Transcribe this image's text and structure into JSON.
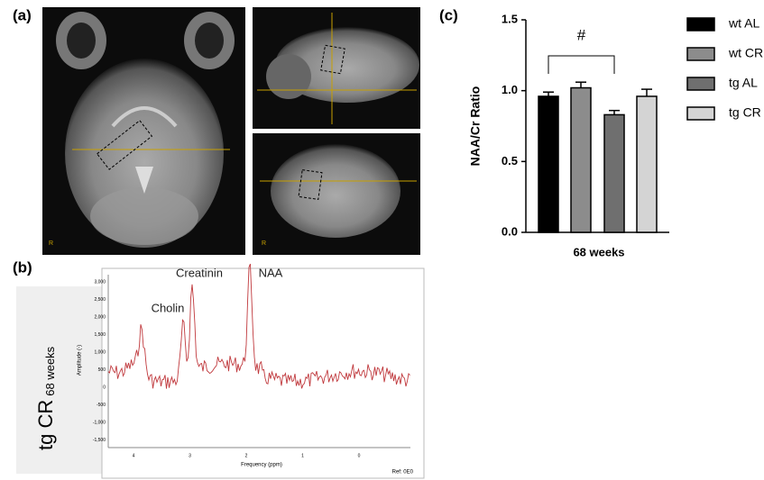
{
  "panel_a": {
    "label": "(a)",
    "orientation": "R"
  },
  "panel_b": {
    "label": "(b)",
    "group": "tg CR",
    "age": "68 weeks",
    "peaks": [
      "Cholin",
      "Creatinin",
      "NAA"
    ],
    "y_axis": "Amplitude (-)",
    "x_axis": "Frequency (ppm)",
    "ref": "Ref: 0E0",
    "yticks": [
      "3,000",
      "2,500",
      "2,000",
      "1,500",
      "1,000",
      "500",
      "0",
      "-500",
      "-1,000",
      "-1,500"
    ],
    "xticks": [
      "4",
      "3",
      "2",
      "1",
      "0"
    ]
  },
  "chart_data": {
    "type": "bar",
    "panel_label": "(c)",
    "ylabel": "NAA/Cr Ratio",
    "categories": [
      "68 weeks"
    ],
    "annotation": "#",
    "series": [
      {
        "name": "wt AL",
        "color": "#000000",
        "values": [
          0.96
        ],
        "errors": [
          0.03
        ]
      },
      {
        "name": "wt CR",
        "color": "#8c8c8c",
        "values": [
          1.02
        ],
        "errors": [
          0.04
        ]
      },
      {
        "name": "tg AL",
        "color": "#6f6f6f",
        "values": [
          0.83
        ],
        "errors": [
          0.03
        ]
      },
      {
        "name": "tg CR",
        "color": "#d4d4d4",
        "values": [
          0.96
        ],
        "errors": [
          0.05
        ]
      }
    ],
    "ylim": [
      0,
      1.5
    ],
    "yticks": [
      {
        "value": 0,
        "label": "0.0"
      },
      {
        "value": 0.5,
        "label": "0.5"
      },
      {
        "value": 1,
        "label": "1.0"
      },
      {
        "value": 1.5,
        "label": "1.5"
      }
    ]
  }
}
